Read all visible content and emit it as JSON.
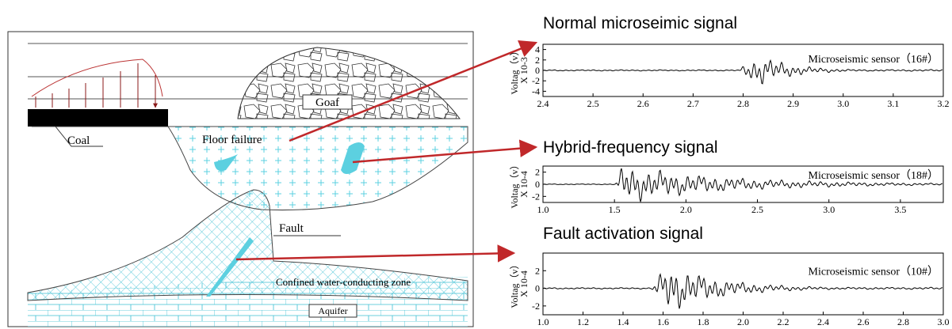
{
  "diagram": {
    "labels": {
      "coal": "Coal",
      "goaf": "Goaf",
      "floor": "Floor failure",
      "fault": "Fault",
      "zone": "Confined water-conducting zone",
      "aquifer": "Aquifer"
    }
  },
  "panels": [
    {
      "title": "Normal microseimic signal",
      "sensor": "Microseismic sensor（16#）",
      "y_label": "Voltag（v）",
      "y_scale": "X 10-3",
      "xlim": [
        2.4,
        3.2
      ],
      "xticks": [
        2.4,
        2.5,
        2.6,
        2.7,
        2.8,
        2.9,
        {
          "value": 3,
          "label": "3.0"
        },
        3.1,
        3.2
      ],
      "ylim": [
        -5,
        5
      ],
      "yticks": [
        -4,
        -2,
        0,
        2,
        4
      ]
    },
    {
      "title": "Hybrid-frequency signal",
      "sensor": "Microseismic sensor（18#）",
      "y_label": "Voltag（v）",
      "y_scale": "X 10-4",
      "xlim": [
        1,
        3.8
      ],
      "xticks": [
        {
          "value": 1,
          "label": "1.0"
        },
        1.5,
        {
          "value": 2,
          "label": "2.0"
        },
        2.5,
        {
          "value": 3,
          "label": "3.0"
        },
        3.5
      ],
      "ylim": [
        -3,
        3
      ],
      "yticks": [
        -2,
        0,
        2
      ]
    },
    {
      "title": "Fault activation signal",
      "sensor": "Microseismic sensor（10#）",
      "y_label": "Voltag（v）",
      "y_scale": "X 10-4",
      "xlim": [
        1,
        3
      ],
      "xticks": [
        {
          "value": 1,
          "label": "1.0"
        },
        1.2,
        1.4,
        1.6,
        1.8,
        {
          "value": 2,
          "label": "2.0"
        },
        2.2,
        2.4,
        2.6,
        2.8,
        {
          "value": 3,
          "label": "3.0"
        }
      ],
      "ylim": [
        -3,
        4
      ],
      "yticks": [
        -2,
        0,
        2
      ]
    }
  ]
}
